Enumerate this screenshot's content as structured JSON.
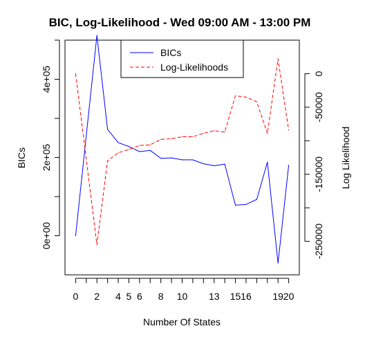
{
  "chart_data": {
    "type": "line",
    "title": "BIC, Log-Likelihood - Wed 09:00 AM - 13:00 PM",
    "xlabel": "Number Of States",
    "ylabel_left": "BICs",
    "ylabel_right": "Log Likelihood",
    "x_ticks": [
      0,
      2,
      4,
      5,
      6,
      8,
      10,
      13,
      15,
      16,
      19,
      20
    ],
    "x_tick_labels": [
      "0",
      "2",
      "4",
      "5",
      "6",
      "8",
      "10",
      "13",
      "15",
      "16",
      "19",
      "20"
    ],
    "xlim": [
      -1,
      21
    ],
    "y_left_ticks": [
      0,
      200000,
      400000
    ],
    "y_left_tick_labels": [
      "0e+00",
      "2e+05",
      "4e+05"
    ],
    "y_left_lim": [
      -100000,
      500000
    ],
    "y_right_ticks": [
      0,
      -50000,
      -150000,
      -250000
    ],
    "y_right_tick_labels": [
      "0",
      "-50000",
      "-150000",
      "-250000"
    ],
    "y_right_lim": [
      -300000,
      50000
    ],
    "legend_position": "top",
    "grid": false,
    "series": [
      {
        "name": "BICs",
        "axis": "left",
        "color": "#0000ff",
        "style": "solid",
        "x": [
          0,
          2,
          3,
          4,
          5,
          6,
          7,
          8,
          9,
          10,
          11,
          12,
          13,
          14,
          15,
          16,
          17,
          18,
          19,
          20
        ],
        "values": [
          0,
          512000,
          272000,
          238000,
          228000,
          215000,
          218000,
          198000,
          199000,
          194000,
          194000,
          184000,
          179000,
          183000,
          78000,
          80000,
          93000,
          188000,
          -70000,
          180000
        ]
      },
      {
        "name": "Log-Likelihoods",
        "axis": "right",
        "color": "#ff0000",
        "style": "dashed",
        "x": [
          0,
          2,
          3,
          4,
          5,
          6,
          7,
          8,
          9,
          10,
          11,
          12,
          13,
          14,
          15,
          16,
          17,
          18,
          19,
          20
        ],
        "values": [
          0,
          -255000,
          -130000,
          -118000,
          -113000,
          -107000,
          -106000,
          -98000,
          -97000,
          -94000,
          -94000,
          -89000,
          -85000,
          -87000,
          -33000,
          -35000,
          -42000,
          -89000,
          22000,
          -84000
        ]
      }
    ]
  }
}
